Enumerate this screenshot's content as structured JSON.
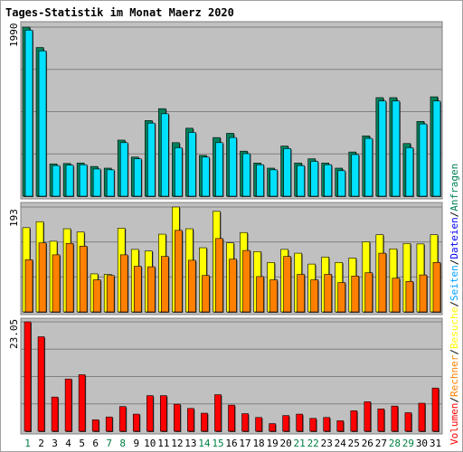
{
  "chart_data": {
    "type": "bar",
    "title": "Tages-Statistik im Monat Maerz 2020",
    "categories": [
      "1",
      "2",
      "3",
      "4",
      "5",
      "6",
      "7",
      "8",
      "9",
      "10",
      "11",
      "12",
      "13",
      "14",
      "15",
      "16",
      "17",
      "18",
      "19",
      "20",
      "21",
      "22",
      "23",
      "24",
      "25",
      "26",
      "27",
      "28",
      "29",
      "30",
      "31"
    ],
    "weekend_days": [
      "1",
      "7",
      "8",
      "14",
      "15",
      "21",
      "22",
      "28",
      "29"
    ],
    "colors": {
      "frame": "#ffffff",
      "plot_bg": "#c0c0c0",
      "title": "#0000ff",
      "axis_label": "#000000",
      "weekday": "#000000",
      "weekend": "#008040",
      "gridline": "#808080",
      "anfragen": "#00805a",
      "dateien": "#00e0ff",
      "seiten": "#ff8000",
      "besuche": "#ffff00",
      "volumen": "#ff0000",
      "rechner": "#ff8000"
    },
    "panels": [
      {
        "id": "top",
        "label_max": "1990",
        "max": 1990,
        "series": [
          {
            "name": "Anfragen",
            "color": "#00805a",
            "values": [
              1990,
              1750,
              380,
              385,
              390,
              350,
              330,
              660,
              460,
              890,
              1030,
              630,
              800,
              480,
              690,
              740,
              530,
              390,
              330,
              590,
              390,
              440,
              390,
              330,
              520,
              710,
              1160,
              1160,
              620,
              880,
              1170
            ]
          },
          {
            "name": "Dateien",
            "color": "#00e0ff",
            "values": [
              1955,
              1710,
              360,
              365,
              370,
              320,
              310,
              630,
              440,
              860,
              970,
              570,
              750,
              460,
              630,
              690,
              500,
              370,
              310,
              560,
              360,
              410,
              370,
              300,
              490,
              680,
              1120,
              1120,
              570,
              850,
              1120
            ]
          }
        ]
      },
      {
        "id": "middle",
        "label_max": "193",
        "max": 193,
        "series": [
          {
            "name": "Seiten",
            "color": "#ffff00",
            "values": [
              155,
              166,
              130,
              153,
              147,
              70,
              69,
              154,
              115,
              112,
              143,
              193,
              153,
              118,
              185,
              127,
              146,
              111,
              91,
              115,
              108,
              88,
              101,
              91,
              99,
              129,
              142,
              116,
              126,
              125,
              142
            ]
          },
          {
            "name": "Besuche",
            "color": "#ff8000",
            "values": [
              96,
              127,
              105,
              126,
              121,
              59,
              67,
              105,
              84,
              83,
              102,
              150,
              95,
              67,
              135,
              97,
              113,
              65,
              59,
              102,
              69,
              59,
              69,
              54,
              66,
              72,
              108,
              62,
              56,
              68,
              91
            ]
          }
        ]
      },
      {
        "id": "bottom",
        "label_max": "23.05",
        "max": 23.05,
        "series": [
          {
            "name": "Volumen",
            "color": "#ff0000",
            "values": [
              23.05,
              19.9,
              7.2,
              11,
              11.9,
              2.4,
              3,
              5.2,
              3.6,
              7.5,
              7.5,
              5.7,
              4.8,
              3.8,
              7.7,
              5.5,
              3.7,
              2.9,
              1.6,
              3.3,
              3.6,
              2.7,
              2.9,
              2.2,
              4.3,
              6.2,
              4.7,
              5.3,
              3.9,
              5.9,
              9.1
            ]
          }
        ]
      }
    ],
    "side_legend": [
      {
        "text": "Anfragen",
        "color": "#00805a"
      },
      {
        "text": "Dateien",
        "color": "#0000ff"
      },
      {
        "text": "Seiten",
        "color": "#00a0ff"
      },
      {
        "text": "Besuche",
        "color": "#ffff00"
      },
      {
        "text": "Rechner",
        "color": "#ff8000"
      },
      {
        "text": "Volumen",
        "color": "#ff0000"
      }
    ],
    "side_separator": "/"
  }
}
